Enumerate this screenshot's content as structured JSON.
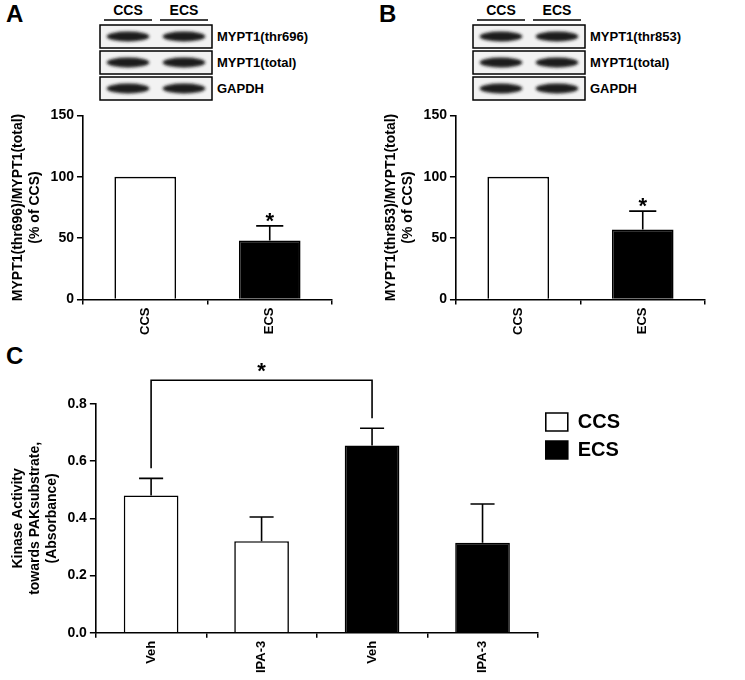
{
  "chart_data": [
    {
      "panel": "A",
      "type": "bar",
      "categories": [
        "CCS",
        "ECS"
      ],
      "values": [
        100,
        48
      ],
      "errors": [
        null,
        12
      ],
      "colors": [
        "#ffffff",
        "#000000"
      ],
      "ylabel": [
        "MYPT1(thr696)/MYPT1(total)",
        "(% of CCS)"
      ],
      "ylim": [
        0,
        150
      ],
      "yticks": [
        0,
        50,
        100,
        150
      ],
      "grid": false,
      "annotations": [
        {
          "text": "*",
          "category": "ECS"
        }
      ],
      "blot": {
        "lanes": [
          "CCS",
          "ECS"
        ],
        "rows": [
          "MYPT1(thr696)",
          "MYPT1(total)",
          "GAPDH"
        ]
      }
    },
    {
      "panel": "B",
      "type": "bar",
      "categories": [
        "CCS",
        "ECS"
      ],
      "values": [
        100,
        57
      ],
      "errors": [
        null,
        15
      ],
      "colors": [
        "#ffffff",
        "#000000"
      ],
      "ylabel": [
        "MYPT1(thr853)/MYPT1(total)",
        "(% of CCS)"
      ],
      "ylim": [
        0,
        150
      ],
      "yticks": [
        0,
        50,
        100,
        150
      ],
      "grid": false,
      "annotations": [
        {
          "text": "*",
          "category": "ECS"
        }
      ],
      "blot": {
        "lanes": [
          "CCS",
          "ECS"
        ],
        "rows": [
          "MYPT1(thr853)",
          "MYPT1(total)",
          "GAPDH"
        ]
      }
    },
    {
      "panel": "C",
      "type": "bar",
      "categories": [
        "Veh",
        "IPA-3",
        "Veh",
        "IPA-3"
      ],
      "series": [
        {
          "name": "CCS",
          "color": "#ffffff",
          "values": [
            0.48,
            0.32,
            null,
            null
          ],
          "errors": [
            0.06,
            0.085,
            null,
            null
          ]
        },
        {
          "name": "ECS",
          "color": "#000000",
          "values": [
            null,
            null,
            0.655,
            0.315
          ],
          "errors": [
            null,
            null,
            0.06,
            0.135
          ]
        }
      ],
      "ylabel": [
        "Kinase Activity",
        "towards PAKsubstrate,",
        "(Absorbance)"
      ],
      "ylim": [
        0,
        0.8
      ],
      "yticks": [
        {
          "value": 0,
          "label": "0.0"
        },
        {
          "value": 0.2,
          "label": "0.2"
        },
        {
          "value": 0.4,
          "label": "0.4"
        },
        {
          "value": 0.6,
          "label": "0.6"
        },
        {
          "value": 0.8,
          "label": "0.8"
        }
      ],
      "grid": false,
      "legend": "right",
      "annotations": [
        {
          "text": "*",
          "between": [
            "CCS",
            "ECS"
          ],
          "category": "Veh"
        }
      ]
    }
  ]
}
